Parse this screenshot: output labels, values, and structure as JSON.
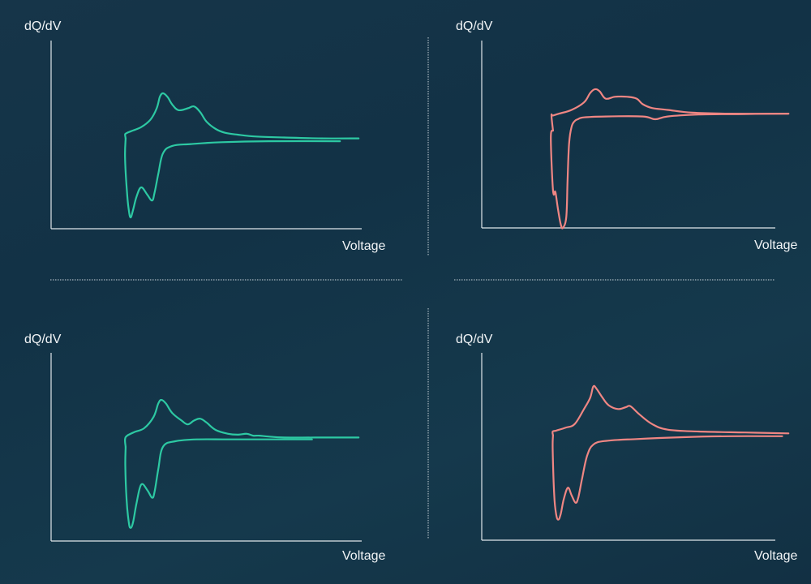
{
  "colors": {
    "teal": "#2dc9a3",
    "salmon": "#ef8683"
  },
  "chart_data": [
    {
      "type": "line",
      "ylabel": "dQ/dV",
      "xlabel": "Voltage",
      "xlim": [
        0,
        100
      ],
      "ylim": [
        0,
        100
      ],
      "color": "teal",
      "series": [
        {
          "x": [
            24,
            23.8,
            24,
            24.5,
            26,
            29,
            32,
            34,
            35,
            36,
            37.5,
            39,
            41,
            44,
            46,
            48,
            50,
            53,
            56,
            60,
            66,
            75,
            87,
            99
          ],
          "y": [
            48,
            50,
            50.5,
            51,
            52,
            54,
            58,
            64,
            70,
            72,
            70,
            66,
            63,
            64,
            65,
            62,
            57,
            53,
            51,
            50,
            49,
            48.5,
            48,
            48
          ]
        },
        {
          "x": [
            24,
            23.8,
            24.4,
            25,
            25.6,
            26.4,
            27.5,
            29,
            31,
            32.5,
            33.3,
            34.5,
            36,
            39,
            45,
            55,
            70,
            93
          ],
          "y": [
            48,
            38,
            20,
            10,
            6,
            10,
            17,
            22,
            18,
            15,
            19,
            29,
            40,
            44,
            45,
            46,
            46.5,
            46.5
          ]
        }
      ]
    },
    {
      "type": "line",
      "ylabel": "dQ/dV",
      "xlabel": "Voltage",
      "xlim": [
        0,
        100
      ],
      "ylim": [
        0,
        100
      ],
      "color": "salmon",
      "series": [
        {
          "x": [
            23,
            22.5,
            23,
            25,
            29,
            33,
            35,
            36.5,
            38,
            40,
            43,
            47,
            50,
            52,
            55,
            60,
            68,
            80,
            99
          ],
          "y": [
            52,
            60,
            60,
            61,
            63,
            67,
            72,
            74,
            73,
            69,
            70,
            70,
            69,
            66,
            64,
            63,
            61.5,
            61,
            61
          ]
        },
        {
          "x": [
            23,
            22.3,
            23,
            23.7,
            24,
            24.7,
            25.5,
            26.2,
            27.3,
            27.7,
            28.2,
            29,
            30,
            31,
            33,
            40,
            52,
            56,
            60,
            70,
            85,
            99
          ],
          "y": [
            52,
            48,
            20,
            19.5,
            17,
            9,
            2,
            0,
            6,
            25,
            45,
            54,
            57,
            58,
            59,
            59.5,
            59.5,
            58,
            59.5,
            60.5,
            60.8,
            61
          ]
        }
      ]
    },
    {
      "type": "line",
      "ylabel": "dQ/dV",
      "xlabel": "Voltage",
      "xlim": [
        0,
        100
      ],
      "ylim": [
        0,
        100
      ],
      "color": "teal",
      "series": [
        {
          "x": [
            24,
            23.8,
            24.5,
            27,
            30,
            33,
            34.5,
            35.5,
            37,
            39,
            42,
            44,
            46,
            48,
            50,
            53,
            57,
            60,
            63,
            65,
            67,
            70,
            75,
            85,
            99
          ],
          "y": [
            50,
            54,
            56,
            58,
            60,
            66,
            73,
            75,
            73,
            68,
            64,
            62,
            64,
            65,
            63,
            59,
            57,
            56.5,
            57,
            56,
            56,
            55.5,
            55,
            55,
            55
          ]
        },
        {
          "x": [
            24,
            23.9,
            24.3,
            25,
            25.6,
            26.4,
            27.5,
            29,
            31,
            32.5,
            33.3,
            34.5,
            36,
            40,
            47,
            57,
            70,
            84
          ],
          "y": [
            50,
            40,
            22,
            10,
            7,
            10,
            20,
            30,
            27,
            23,
            26,
            38,
            50,
            53,
            54,
            54,
            54,
            54
          ]
        }
      ]
    },
    {
      "type": "line",
      "ylabel": "dQ/dV",
      "xlabel": "Voltage",
      "xlim": [
        0,
        100
      ],
      "ylim": [
        0,
        100
      ],
      "color": "salmon",
      "series": [
        {
          "x": [
            23,
            22.9,
            24,
            27,
            30,
            33,
            35,
            36,
            37,
            39,
            41,
            44,
            46.5,
            48,
            51,
            55,
            60,
            70,
            85,
            99
          ],
          "y": [
            56,
            58,
            58.5,
            60,
            62,
            70,
            76,
            82,
            81,
            76,
            72,
            70,
            71,
            71.5,
            67,
            62,
            59,
            58,
            57.5,
            57
          ]
        },
        {
          "x": [
            23,
            22.9,
            23.4,
            24,
            24.7,
            25.5,
            26.5,
            27.8,
            29,
            30.3,
            31.2,
            32.4,
            34,
            36,
            40,
            50,
            65,
            80,
            97
          ],
          "y": [
            56,
            48,
            24,
            14,
            11,
            14,
            22,
            28,
            24,
            20,
            23,
            33,
            45,
            51,
            53,
            54,
            55,
            55.5,
            55.5
          ]
        }
      ]
    }
  ]
}
